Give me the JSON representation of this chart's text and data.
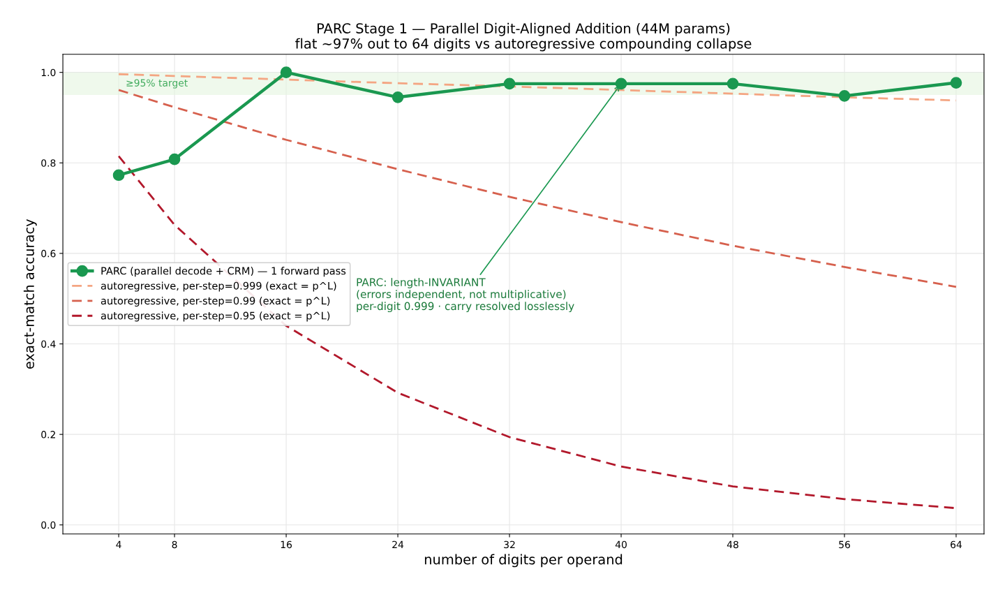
{
  "chart_data": {
    "type": "line",
    "title": "PARC Stage 1 — Parallel Digit-Aligned Addition (44M params)\nflat ~97% out to 64 digits vs autoregressive compounding collapse",
    "xlabel": "number of digits per operand",
    "ylabel": "exact-match accuracy",
    "x": [
      4,
      8,
      16,
      24,
      32,
      40,
      48,
      56,
      64
    ],
    "series": [
      {
        "name": "PARC (parallel decode + CRM) — 1 forward pass",
        "color": "#1a9850",
        "values": [
          0.773,
          0.808,
          1.0,
          0.945,
          0.975,
          0.975,
          0.975,
          0.948,
          0.977
        ],
        "marker": "circle",
        "line_style": "solid"
      },
      {
        "name": "autoregressive, per-step=0.999 (exact = p^L)",
        "color": "#f4a582",
        "values": [
          0.996,
          0.992,
          0.984,
          0.976,
          0.969,
          0.961,
          0.953,
          0.945,
          0.938
        ],
        "marker": "none",
        "line_style": "dashed"
      },
      {
        "name": "autoregressive, per-step=0.99 (exact = p^L)",
        "color": "#d6604d",
        "values": [
          0.961,
          0.923,
          0.851,
          0.786,
          0.725,
          0.669,
          0.617,
          0.57,
          0.526
        ],
        "marker": "none",
        "line_style": "dashed"
      },
      {
        "name": "autoregressive, per-step=0.95 (exact = p^L)",
        "color": "#b2182b",
        "values": [
          0.815,
          0.663,
          0.44,
          0.292,
          0.194,
          0.129,
          0.085,
          0.057,
          0.037
        ],
        "marker": "none",
        "line_style": "dashed"
      }
    ],
    "xlim": [
      0,
      66
    ],
    "xticks": [
      4,
      8,
      16,
      24,
      32,
      40,
      48,
      56,
      64
    ],
    "ylim": [
      -0.02,
      1.04
    ],
    "yticks": [
      {
        "value": 0.0,
        "label": "0.0"
      },
      {
        "value": 0.2,
        "label": "0.2"
      },
      {
        "value": 0.4,
        "label": "0.4"
      },
      {
        "value": 0.6,
        "label": "0.6"
      },
      {
        "value": 0.8,
        "label": "0.8"
      },
      {
        "value": 1.0,
        "label": "1.0"
      }
    ],
    "bands": [
      {
        "axis": "y",
        "from": 0.95,
        "to": 1.0,
        "label": "≥95% target",
        "color": "#e5f5e0"
      }
    ],
    "annotations": [
      {
        "text": "PARC: length-INVARIANT\n(errors independent, not multiplicative)\nper-digit 0.999 · carry resolved losslessly",
        "x": 40,
        "y": 0.975
      }
    ],
    "grid": true,
    "legend": "center left"
  }
}
